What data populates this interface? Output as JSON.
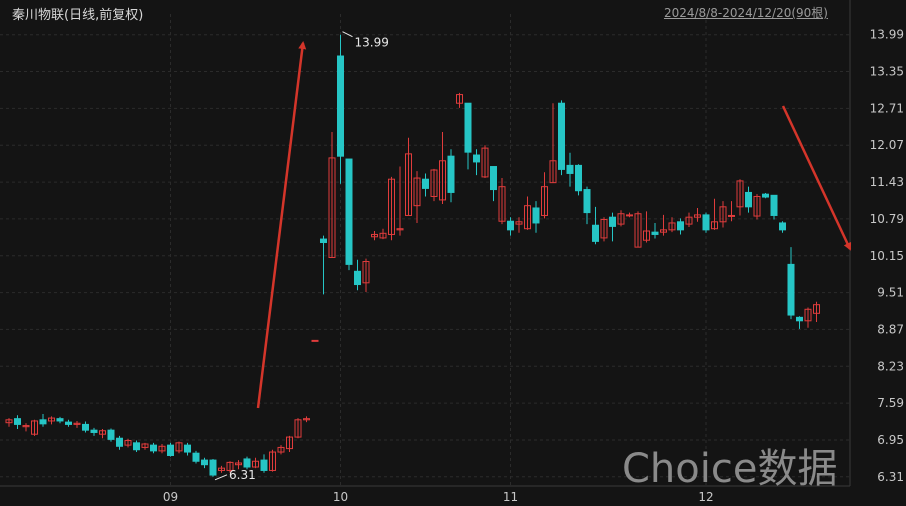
{
  "header": {
    "title": "秦川物联(日线,前复权)",
    "range": "2024/8/8-2024/12/20(90根)"
  },
  "watermark": "Choice数据",
  "colors": {
    "up": "#e03c3c",
    "down": "#26c6c6",
    "grid": "#2b2b2b",
    "axis_text": "#c8c8c8",
    "arrow": "#d4352a"
  },
  "chart_data": {
    "type": "candlestick",
    "ylim": [
      6.15,
      14.35
    ],
    "yticks": [
      "13.99",
      "13.35",
      "12.71",
      "12.07",
      "11.43",
      "10.79",
      "10.15",
      "9.51",
      "8.87",
      "8.23",
      "7.59",
      "6.95",
      "6.31"
    ],
    "xticks": [
      "09",
      "10",
      "11",
      "12"
    ],
    "xtick_index": [
      19,
      39,
      59,
      82
    ],
    "annotations": [
      {
        "label": "13.99",
        "index": 39
      },
      {
        "label": "6.31",
        "index": 24
      }
    ],
    "candles": [
      [
        7.25,
        7.3,
        7.33,
        7.18
      ],
      [
        7.32,
        7.22,
        7.38,
        7.14
      ],
      [
        7.18,
        7.2,
        7.24,
        7.1
      ],
      [
        7.05,
        7.28,
        7.3,
        7.02
      ],
      [
        7.3,
        7.23,
        7.4,
        7.18
      ],
      [
        7.28,
        7.33,
        7.36,
        7.22
      ],
      [
        7.32,
        7.28,
        7.35,
        7.24
      ],
      [
        7.26,
        7.22,
        7.3,
        7.18
      ],
      [
        7.22,
        7.24,
        7.28,
        7.16
      ],
      [
        7.22,
        7.12,
        7.27,
        7.08
      ],
      [
        7.12,
        7.08,
        7.16,
        7.02
      ],
      [
        7.05,
        7.11,
        7.14,
        6.98
      ],
      [
        7.12,
        6.96,
        7.15,
        6.92
      ],
      [
        6.98,
        6.84,
        7.02,
        6.78
      ],
      [
        6.86,
        6.94,
        6.97,
        6.82
      ],
      [
        6.9,
        6.78,
        6.94,
        6.74
      ],
      [
        6.82,
        6.88,
        6.9,
        6.78
      ],
      [
        6.86,
        6.76,
        6.9,
        6.72
      ],
      [
        6.76,
        6.84,
        6.88,
        6.72
      ],
      [
        6.86,
        6.68,
        6.9,
        6.66
      ],
      [
        6.76,
        6.9,
        6.92,
        6.72
      ],
      [
        6.86,
        6.74,
        6.9,
        6.68
      ],
      [
        6.72,
        6.58,
        6.76,
        6.54
      ],
      [
        6.6,
        6.52,
        6.64,
        6.46
      ],
      [
        6.6,
        6.34,
        6.62,
        6.31
      ],
      [
        6.42,
        6.46,
        6.5,
        6.38
      ],
      [
        6.42,
        6.56,
        6.58,
        6.38
      ],
      [
        6.52,
        6.55,
        6.6,
        6.44
      ],
      [
        6.62,
        6.48,
        6.66,
        6.44
      ],
      [
        6.48,
        6.58,
        6.64,
        6.46
      ],
      [
        6.6,
        6.42,
        6.7,
        6.38
      ],
      [
        6.42,
        6.74,
        6.78,
        6.4
      ],
      [
        6.74,
        6.82,
        6.86,
        6.7
      ],
      [
        6.8,
        7.0,
        7.02,
        6.74
      ],
      [
        7.0,
        7.3,
        7.33,
        6.98
      ],
      [
        7.3,
        7.32,
        7.36,
        7.26
      ],
      [
        8.68,
        8.68,
        8.68,
        8.68
      ],
      [
        10.44,
        10.38,
        10.5,
        9.48
      ],
      [
        10.12,
        11.85,
        12.3,
        10.12
      ],
      [
        13.62,
        11.88,
        13.99,
        11.4
      ],
      [
        11.83,
        10.0,
        11.83,
        9.9
      ],
      [
        9.88,
        9.65,
        10.08,
        9.55
      ],
      [
        9.68,
        10.05,
        10.1,
        9.52
      ],
      [
        10.48,
        10.52,
        10.58,
        10.42
      ],
      [
        10.46,
        10.54,
        10.62,
        10.44
      ],
      [
        10.52,
        11.48,
        11.52,
        10.42
      ],
      [
        10.6,
        10.62,
        11.7,
        10.5
      ],
      [
        10.85,
        11.92,
        12.2,
        10.85
      ],
      [
        11.02,
        11.5,
        11.62,
        10.72
      ],
      [
        11.48,
        11.32,
        11.58,
        11.18
      ],
      [
        11.18,
        11.64,
        11.66,
        11.1
      ],
      [
        11.12,
        11.8,
        12.3,
        11.05
      ],
      [
        11.88,
        11.25,
        12.0,
        11.08
      ],
      [
        12.8,
        12.95,
        12.98,
        12.72
      ],
      [
        12.8,
        11.95,
        12.8,
        11.65
      ],
      [
        11.9,
        11.78,
        12.0,
        11.55
      ],
      [
        11.52,
        12.02,
        12.07,
        11.5
      ],
      [
        11.7,
        11.3,
        11.7,
        11.1
      ],
      [
        10.75,
        11.35,
        11.5,
        10.7
      ],
      [
        10.75,
        10.6,
        10.82,
        10.5
      ],
      [
        10.7,
        10.74,
        10.82,
        10.55
      ],
      [
        10.62,
        11.02,
        11.18,
        10.6
      ],
      [
        10.98,
        10.72,
        11.1,
        10.55
      ],
      [
        10.85,
        11.35,
        11.6,
        10.8
      ],
      [
        11.42,
        11.8,
        12.8,
        11.42
      ],
      [
        12.8,
        11.65,
        12.85,
        11.55
      ],
      [
        11.72,
        11.58,
        11.94,
        11.35
      ],
      [
        11.72,
        11.28,
        11.74,
        11.2
      ],
      [
        11.3,
        10.9,
        11.35,
        10.7
      ],
      [
        10.68,
        10.4,
        11.0,
        10.35
      ],
      [
        10.46,
        10.78,
        10.82,
        10.4
      ],
      [
        10.82,
        10.66,
        10.9,
        10.4
      ],
      [
        10.7,
        10.88,
        10.94,
        10.66
      ],
      [
        10.86,
        10.86,
        10.9,
        10.82
      ],
      [
        10.3,
        10.88,
        10.92,
        10.3
      ],
      [
        10.42,
        10.58,
        10.92,
        10.38
      ],
      [
        10.56,
        10.52,
        10.72,
        10.45
      ],
      [
        10.56,
        10.6,
        10.86,
        10.5
      ],
      [
        10.6,
        10.72,
        10.82,
        10.56
      ],
      [
        10.74,
        10.6,
        10.8,
        10.52
      ],
      [
        10.7,
        10.82,
        10.9,
        10.65
      ],
      [
        10.82,
        10.86,
        10.98,
        10.74
      ],
      [
        10.86,
        10.6,
        10.9,
        10.55
      ],
      [
        10.62,
        10.74,
        11.14,
        10.6
      ],
      [
        10.74,
        11.0,
        11.1,
        10.64
      ],
      [
        10.85,
        10.85,
        11.1,
        10.75
      ],
      [
        11.0,
        11.45,
        11.48,
        10.85
      ],
      [
        11.25,
        11.0,
        11.35,
        10.9
      ],
      [
        10.84,
        11.18,
        11.22,
        10.78
      ],
      [
        11.22,
        11.17,
        11.24,
        11.15
      ]
    ],
    "extra_candles": [
      [
        11.2,
        10.85,
        11.2,
        10.78
      ],
      [
        10.72,
        10.6,
        10.75,
        10.55
      ],
      [
        10.0,
        9.12,
        10.3,
        9.05
      ],
      [
        9.08,
        9.02,
        9.1,
        8.88
      ],
      [
        9.02,
        9.22,
        9.25,
        8.9
      ],
      [
        9.15,
        9.3,
        9.35,
        9.0
      ]
    ]
  }
}
